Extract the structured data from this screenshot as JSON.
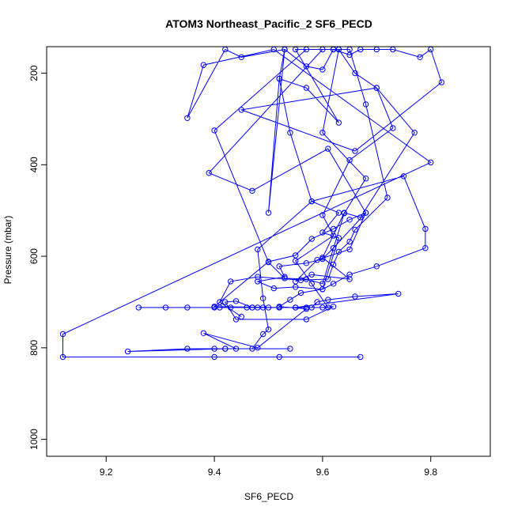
{
  "chart_data": {
    "type": "line",
    "title": "ATOM3 Northeast_Pacific_2 SF6_PECD",
    "xlabel": "SF6_PECD",
    "ylabel": "Pressure (mbar)",
    "xlim": [
      9.09,
      9.91
    ],
    "ylim": [
      1037,
      142
    ],
    "y_reversed": true,
    "x_ticks": [
      9.2,
      9.4,
      9.6,
      9.8
    ],
    "x_tick_labels": [
      "9.2",
      "9.4",
      "9.6",
      "9.8"
    ],
    "y_ticks": [
      200,
      400,
      600,
      800,
      1000
    ],
    "y_tick_labels": [
      "200",
      "400",
      "600",
      "800",
      "1000"
    ],
    "grid": false,
    "colors": {
      "series": "#0000ff",
      "axes": "#000000"
    },
    "series": [
      {
        "marker": "open-circle",
        "points": [
          [
            9.67,
            820
          ],
          [
            9.52,
            820
          ],
          [
            9.4,
            820
          ],
          [
            9.12,
            820
          ],
          [
            9.12,
            770
          ],
          [
            9.8,
            395
          ],
          [
            9.51,
            148
          ],
          [
            9.38,
            182
          ],
          [
            9.35,
            298
          ],
          [
            9.42,
            148
          ],
          [
            9.45,
            165
          ],
          [
            9.53,
            148
          ],
          [
            9.52,
            212
          ],
          [
            9.5,
            505
          ],
          [
            9.53,
            148
          ],
          [
            9.57,
            185
          ],
          [
            9.6,
            192
          ],
          [
            9.62,
            148
          ],
          [
            9.65,
            160
          ],
          [
            9.67,
            148
          ],
          [
            9.7,
            148
          ],
          [
            9.73,
            148
          ],
          [
            9.78,
            165
          ],
          [
            9.8,
            148
          ],
          [
            9.82,
            220
          ],
          [
            9.66,
            370
          ],
          [
            9.45,
            280
          ],
          [
            9.7,
            232
          ],
          [
            9.73,
            320
          ],
          [
            9.65,
            390
          ],
          [
            9.6,
            510
          ],
          [
            9.62,
            555
          ],
          [
            9.55,
            610
          ],
          [
            9.58,
            660
          ],
          [
            9.61,
            712
          ],
          [
            9.52,
            712
          ],
          [
            9.41,
            712
          ],
          [
            9.26,
            712
          ],
          [
            9.31,
            712
          ],
          [
            9.48,
            712
          ],
          [
            9.57,
            712
          ],
          [
            9.6,
            712
          ],
          [
            9.62,
            710
          ],
          [
            9.57,
            738
          ],
          [
            9.44,
            738
          ],
          [
            9.42,
            700
          ],
          [
            9.44,
            698
          ],
          [
            9.47,
            712
          ],
          [
            9.5,
            712
          ],
          [
            9.55,
            712
          ],
          [
            9.58,
            712
          ],
          [
            9.59,
            700
          ],
          [
            9.61,
            695
          ],
          [
            9.66,
            688
          ],
          [
            9.74,
            682
          ],
          [
            9.55,
            712
          ],
          [
            9.49,
            712
          ],
          [
            9.47,
            712
          ],
          [
            9.4,
            712
          ],
          [
            9.35,
            712
          ],
          [
            9.43,
            712
          ],
          [
            9.46,
            712
          ],
          [
            9.52,
            712
          ],
          [
            9.4,
            710
          ],
          [
            9.5,
            612
          ],
          [
            9.55,
            598
          ],
          [
            9.58,
            562
          ],
          [
            9.62,
            540
          ],
          [
            9.65,
            520
          ],
          [
            9.68,
            505
          ],
          [
            9.62,
            582
          ],
          [
            9.6,
            606
          ],
          [
            9.57,
            615
          ],
          [
            9.52,
            622
          ],
          [
            9.53,
            645
          ],
          [
            9.48,
            655
          ],
          [
            9.51,
            670
          ],
          [
            9.55,
            667
          ],
          [
            9.6,
            672
          ],
          [
            9.62,
            660
          ],
          [
            9.65,
            640
          ],
          [
            9.7,
            622
          ],
          [
            9.79,
            582
          ],
          [
            9.79,
            540
          ],
          [
            9.75,
            425
          ],
          [
            9.58,
            480
          ],
          [
            9.48,
            585
          ],
          [
            9.49,
            692
          ],
          [
            9.5,
            760
          ],
          [
            9.49,
            770
          ],
          [
            9.47,
            802
          ],
          [
            9.54,
            802
          ],
          [
            9.42,
            802
          ],
          [
            9.4,
            802
          ],
          [
            9.35,
            802
          ],
          [
            9.24,
            808
          ],
          [
            9.42,
            802
          ],
          [
            9.44,
            802
          ],
          [
            9.38,
            768
          ],
          [
            9.48,
            800
          ],
          [
            9.57,
            715
          ],
          [
            9.52,
            710
          ],
          [
            9.54,
            695
          ],
          [
            9.56,
            680
          ],
          [
            9.6,
            672
          ],
          [
            9.63,
            560
          ],
          [
            9.6,
            548
          ],
          [
            9.63,
            505
          ],
          [
            9.58,
            480
          ],
          [
            9.54,
            330
          ],
          [
            9.52,
            212
          ],
          [
            9.57,
            232
          ],
          [
            9.63,
            308
          ],
          [
            9.55,
            148
          ],
          [
            9.62,
            148
          ],
          [
            9.63,
            148
          ],
          [
            9.6,
            330
          ],
          [
            9.68,
            430
          ],
          [
            9.64,
            506
          ],
          [
            9.6,
            660
          ],
          [
            9.57,
            650
          ],
          [
            9.53,
            648
          ],
          [
            9.5,
            613
          ],
          [
            9.4,
            325
          ],
          [
            9.57,
            148
          ],
          [
            9.63,
            148
          ],
          [
            9.66,
            200
          ],
          [
            9.7,
            232
          ],
          [
            9.77,
            330
          ],
          [
            9.67,
            515
          ],
          [
            9.64,
            505
          ],
          [
            9.6,
            603
          ],
          [
            9.65,
            650
          ],
          [
            9.58,
            640
          ],
          [
            9.55,
            655
          ],
          [
            9.59,
            608
          ],
          [
            9.65,
            585
          ],
          [
            9.68,
            505
          ],
          [
            9.61,
            365
          ],
          [
            9.47,
            457
          ],
          [
            9.39,
            418
          ],
          [
            9.6,
            148
          ],
          [
            9.65,
            148
          ],
          [
            9.68,
            268
          ],
          [
            9.72,
            472
          ],
          [
            9.66,
            542
          ],
          [
            9.65,
            568
          ],
          [
            9.63,
            590
          ],
          [
            9.62,
            618
          ],
          [
            9.61,
            650
          ],
          [
            9.56,
            652
          ],
          [
            9.48,
            645
          ],
          [
            9.43,
            655
          ],
          [
            9.41,
            700
          ],
          [
            9.45,
            732
          ]
        ]
      }
    ]
  }
}
